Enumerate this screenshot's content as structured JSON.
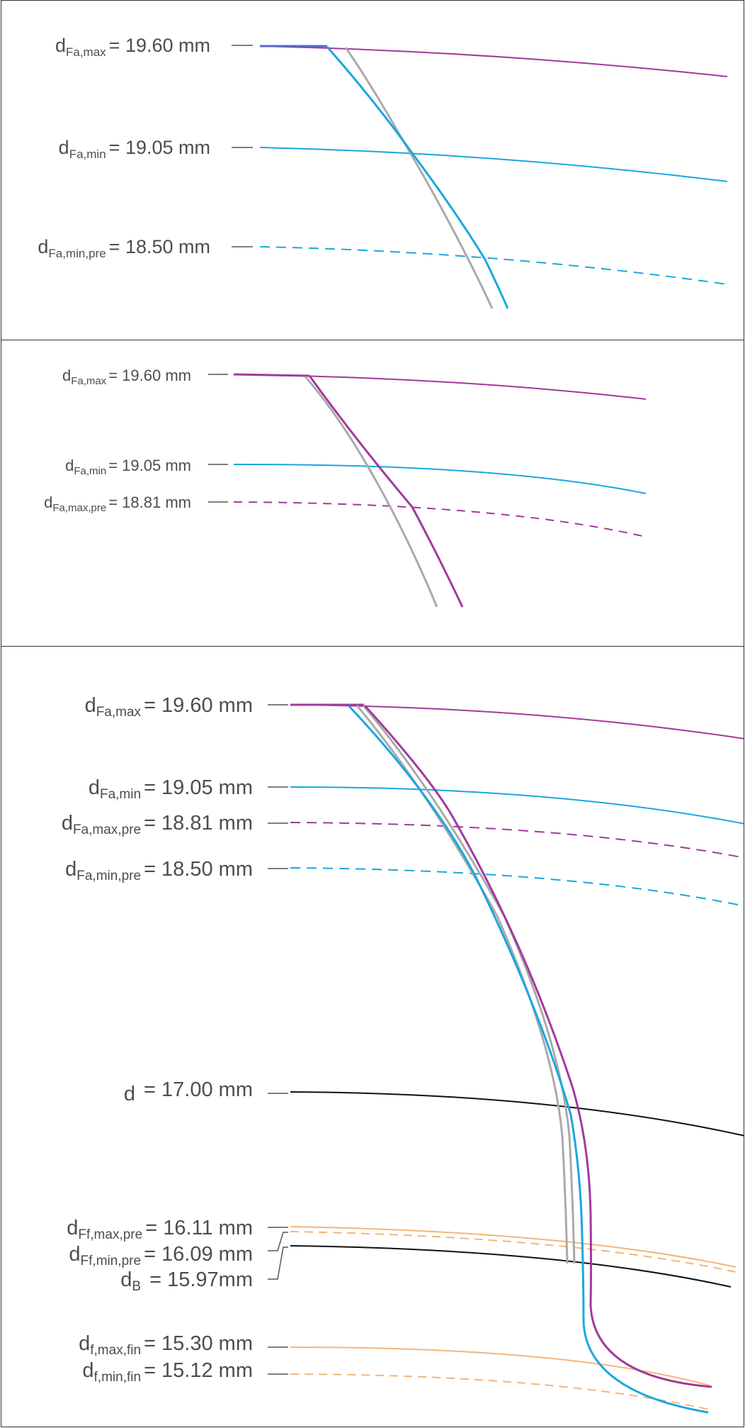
{
  "colors": {
    "magenta": "#a23a9c",
    "blue": "#1aa7df",
    "gray": "#aaaaaa",
    "black": "#111111",
    "orange": "#f3b57a",
    "label": "#4d4d4d"
  },
  "panels": [
    {
      "labels": [
        {
          "d": "d",
          "sub": "Fa,max",
          "value": "= 19.60 mm"
        },
        {
          "d": "d",
          "sub": "Fa,min",
          "value": "= 19.05 mm"
        },
        {
          "d": "d",
          "sub": "Fa,min,pre",
          "value": "= 18.50 mm"
        }
      ]
    },
    {
      "labels": [
        {
          "d": "d",
          "sub": "Fa,max",
          "value": "= 19.60 mm"
        },
        {
          "d": "d",
          "sub": "Fa,min",
          "value": "= 19.05 mm"
        },
        {
          "d": "d",
          "sub": "Fa,max,pre",
          "value": "= 18.81 mm"
        }
      ]
    },
    {
      "labels": [
        {
          "d": "d",
          "sub": "Fa,max",
          "value": "= 19.60 mm"
        },
        {
          "d": "d",
          "sub": "Fa,min",
          "value": "= 19.05 mm"
        },
        {
          "d": "d",
          "sub": "Fa,max,pre",
          "value": "= 18.81 mm"
        },
        {
          "d": "d",
          "sub": "Fa,min,pre",
          "value": "= 18.50 mm"
        },
        {
          "d": "d",
          "sub": "",
          "value": " = 17.00 mm"
        },
        {
          "d": "d",
          "sub": "Ff,max,pre",
          "value": "= 16.11 mm"
        },
        {
          "d": "d",
          "sub": "Ff,min,pre",
          "value": "= 16.09 mm"
        },
        {
          "d": "d",
          "sub": "B",
          "value": " = 15.97mm"
        },
        {
          "d": "d",
          "sub": "f,max,fin",
          "value": "= 15.30 mm"
        },
        {
          "d": "d",
          "sub": "f,min,fin",
          "value": "= 15.12 mm"
        }
      ]
    }
  ]
}
